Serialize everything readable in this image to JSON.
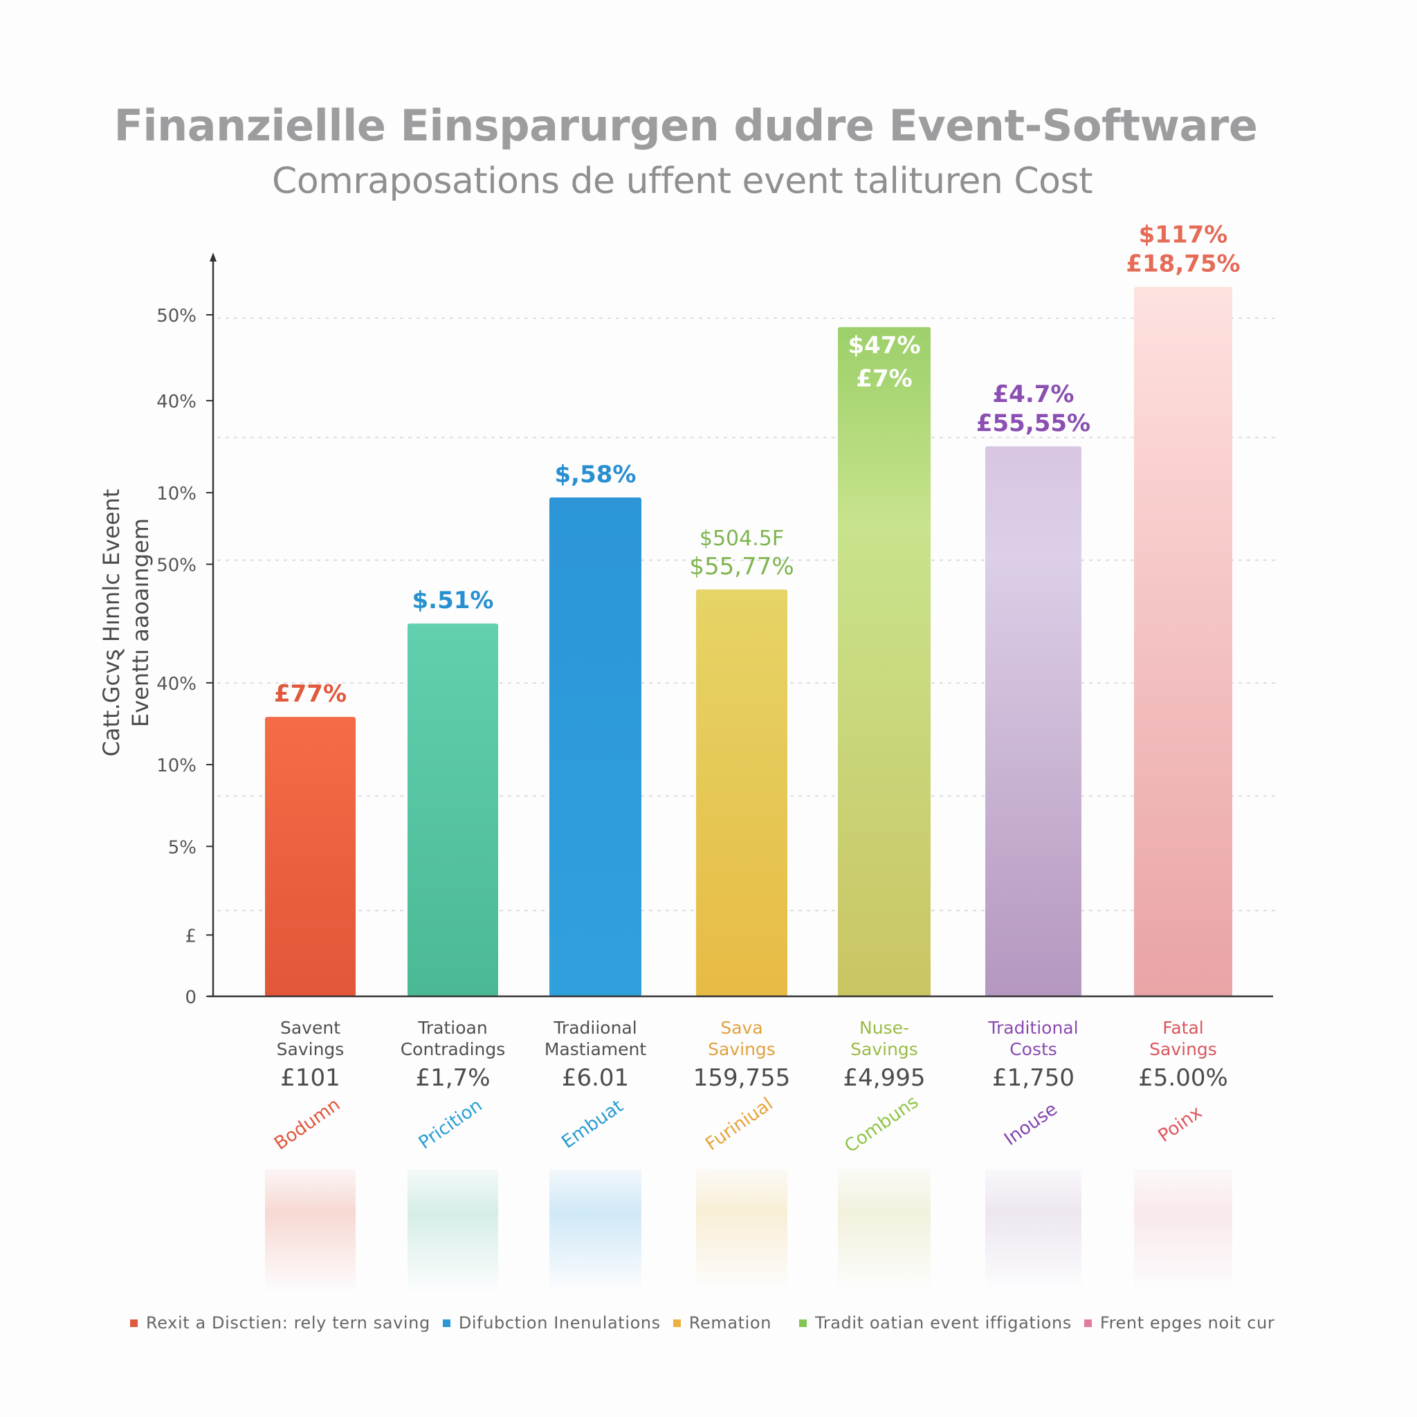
{
  "chart_data": {
    "type": "bar",
    "title": "Finanziellle Einsparurgen dudre Event-Software",
    "subtitle": "Comraposations de uffent event talituren Cost",
    "ylabel_lines": [
      "Catt.Gcvȿ Hınnlc Eveent",
      "Eventtı aaoaıngem"
    ],
    "xlabel": "",
    "y_ticks": [
      {
        "label": "0",
        "level": 0.0
      },
      {
        "label": "£",
        "level": 0.09
      },
      {
        "label": "5%",
        "level": 0.22
      },
      {
        "label": "10%",
        "level": 0.34
      },
      {
        "label": "40%",
        "level": 0.46
      },
      {
        "label": "50%",
        "level": 0.634
      },
      {
        "label": "10%",
        "level": 0.739
      },
      {
        "label": "40%",
        "level": 0.874
      },
      {
        "label": "50%",
        "level": 1.0
      }
    ],
    "gridline_levels": [
      0.126,
      0.294,
      0.46,
      0.64,
      0.82,
      0.995
    ],
    "ylim": [
      0,
      1.09
    ],
    "grid": true,
    "legend_position": "bottom",
    "categories": [
      "Savent Savings",
      "Tratioan Contradings",
      "Tradiional Mastiament",
      "Sava Savings",
      "Nuse- Savings",
      "Traditional Costs",
      "Fatal Savings"
    ],
    "values": [
      0.41,
      0.547,
      0.732,
      0.597,
      0.982,
      0.807,
      1.041
    ],
    "bars": [
      {
        "name_lines": [
          "Savent",
          "Savings"
        ],
        "amount": "£101",
        "tag": "Bodumn",
        "value_labels": [
          "£77%"
        ],
        "label_color": "#e0593d",
        "label_inside": false,
        "color_top": "#f46c47",
        "color_bottom": "#e15738",
        "name_color": "#505050",
        "tag_color": "#e0553b"
      },
      {
        "name_lines": [
          "Tratioan",
          "Contradings"
        ],
        "amount": "£1,7%",
        "tag": "Pricition",
        "value_labels": [
          "$.51%"
        ],
        "label_color": "#2791cf",
        "label_inside": false,
        "color_top": "#62cfae",
        "color_bottom": "#4bb896",
        "name_color": "#505050",
        "tag_color": "#2a9fd1"
      },
      {
        "name_lines": [
          "Tradiional",
          "Mastiament"
        ],
        "amount": "£6.01",
        "tag": "Embuat",
        "value_labels": [
          "$,58%"
        ],
        "label_color": "#2a8fcf",
        "label_inside": false,
        "color_top": "#2b95d8",
        "color_bottom": "#30a0dc",
        "name_color": "#505050",
        "tag_color": "#2a9bcf"
      },
      {
        "name_lines": [
          "Sava",
          "Savings"
        ],
        "amount": "159,755",
        "tag": "Furiniual",
        "value_labels": [
          "$504.5F",
          "$55,77%"
        ],
        "label_color": "#7fb54f",
        "label_inside": false,
        "color_top": "#e6d466",
        "color_bottom": "#e7bb45",
        "name_color": "#e0a23c",
        "tag_color": "#e8a23a"
      },
      {
        "name_lines": [
          "Nuse-",
          "Savings"
        ],
        "amount": "£4,995",
        "tag": "Combuns",
        "value_labels": [
          "$47%",
          "£7%"
        ],
        "label_color": "#ffffff",
        "label_inside": true,
        "color_top": "#9cd06a",
        "color_bottom": "#cac563",
        "name_color": "#9bbb45",
        "tag_color": "#8fc545"
      },
      {
        "name_lines": [
          "Traditional",
          "Costs"
        ],
        "amount": "£1,750",
        "tag": "Inouse",
        "value_labels": [
          "£4.7%",
          "£55,55%"
        ],
        "label_color": "#8a4fb0",
        "label_inside": false,
        "color_top": "#d8c6e2",
        "color_bottom": "#b597bf",
        "name_color": "#8a4bb0",
        "tag_color": "#8046ad"
      },
      {
        "name_lines": [
          "Fatal",
          "Savings"
        ],
        "amount": "£5.00%",
        "tag": "Poinx",
        "value_labels": [
          "$117%",
          "£18,75%"
        ],
        "label_color": "#e56b57",
        "label_inside": false,
        "color_top": "#fde2df",
        "color_bottom": "#e9a3a6",
        "name_color": "#d9575c",
        "tag_color": "#e05560"
      }
    ],
    "legend": [
      {
        "label": "Rexit  a Disctien: rely tern saving",
        "color": "#e05a3f"
      },
      {
        "label": "Difubction Inenulations",
        "color": "#2a96d4"
      },
      {
        "label": "Remation",
        "color": "#eab040"
      },
      {
        "label": "Tradit oatian event iffigations",
        "color": "#84c552"
      },
      {
        "label": "Frent epges noit cur",
        "color": "#e07c99"
      }
    ]
  }
}
